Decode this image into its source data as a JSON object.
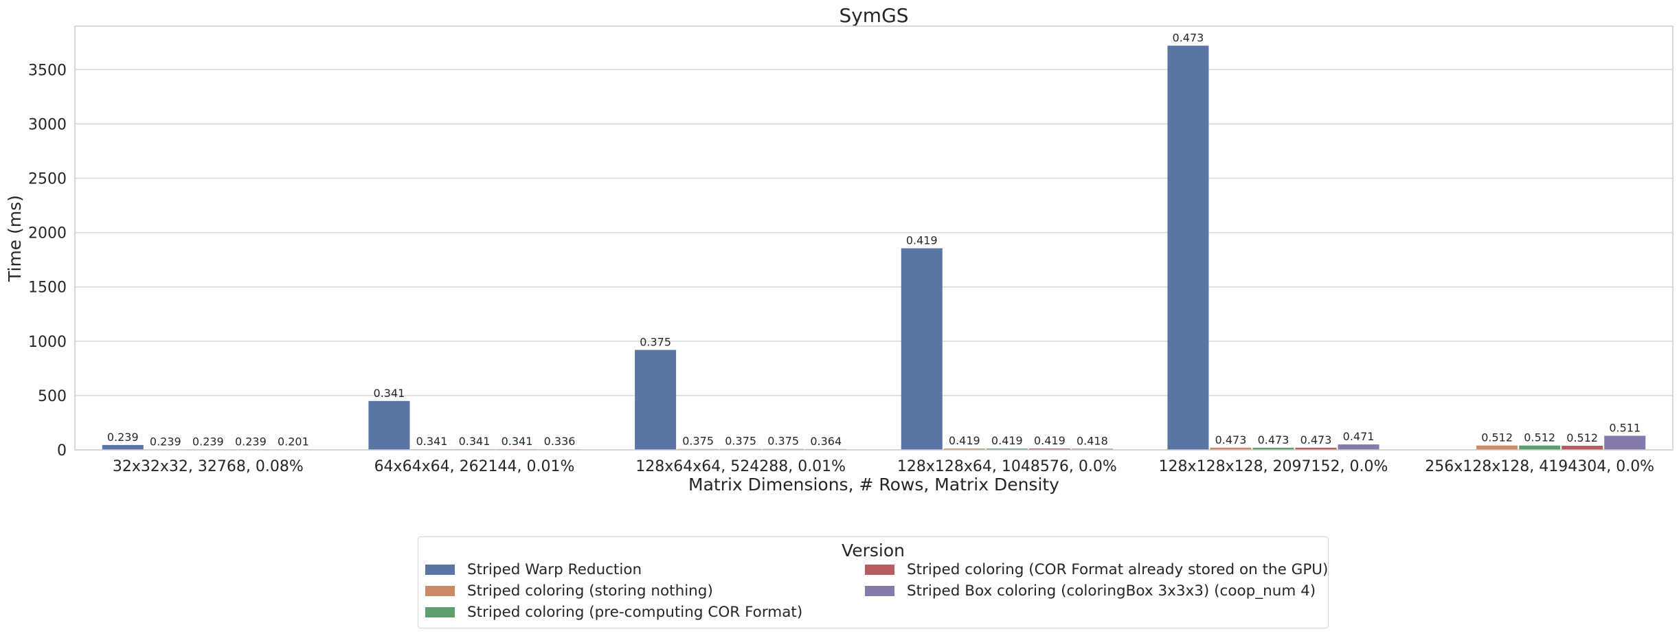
{
  "chart_data": {
    "type": "bar",
    "title": "SymGS",
    "xlabel": "Matrix Dimensions, # Rows, Matrix Density",
    "ylabel": "Time (ms)",
    "ylim": [
      0,
      3900
    ],
    "yticks": [
      0,
      500,
      1000,
      1500,
      2000,
      2500,
      3000,
      3500
    ],
    "grid": "horizontal",
    "legend_title": "Version",
    "legend_placement": "bottom-center",
    "categories": [
      "32x32x32, 32768, 0.08%",
      "64x64x64, 262144, 0.01%",
      "128x64x64, 524288, 0.01%",
      "128x128x64, 1048576, 0.0%",
      "128x128x128, 2097152, 0.0%",
      "256x128x128, 4194304, 0.0%"
    ],
    "series": [
      {
        "name": "Striped Warp Reduction",
        "color": "#5975a4",
        "values": [
          45,
          450,
          920,
          1855,
          3720,
          null
        ],
        "labels": [
          "0.239",
          "0.341",
          "0.375",
          "0.419",
          "0.473",
          ""
        ]
      },
      {
        "name": "Striped coloring (storing nothing)",
        "color": "#cc8963",
        "values": [
          4,
          6,
          8,
          12,
          20,
          40
        ],
        "labels": [
          "0.239",
          "0.341",
          "0.375",
          "0.419",
          "0.473",
          "0.512"
        ]
      },
      {
        "name": "Striped coloring (pre-computing COR Format)",
        "color": "#5f9e6e",
        "values": [
          4,
          6,
          8,
          12,
          20,
          40
        ],
        "labels": [
          "0.239",
          "0.341",
          "0.375",
          "0.419",
          "0.473",
          "0.512"
        ]
      },
      {
        "name": "Striped coloring (COR Format already stored on the GPU)",
        "color": "#b55d60",
        "values": [
          4,
          6,
          8,
          12,
          20,
          38
        ],
        "labels": [
          "0.239",
          "0.341",
          "0.375",
          "0.419",
          "0.473",
          "0.512"
        ]
      },
      {
        "name": "Striped Box coloring (coloringBox 3x3x3) (coop_num 4)",
        "color": "#857aab",
        "values": [
          3,
          5,
          7,
          10,
          50,
          130
        ],
        "labels": [
          "0.201",
          "0.336",
          "0.364",
          "0.418",
          "0.471",
          "0.511"
        ]
      }
    ]
  }
}
